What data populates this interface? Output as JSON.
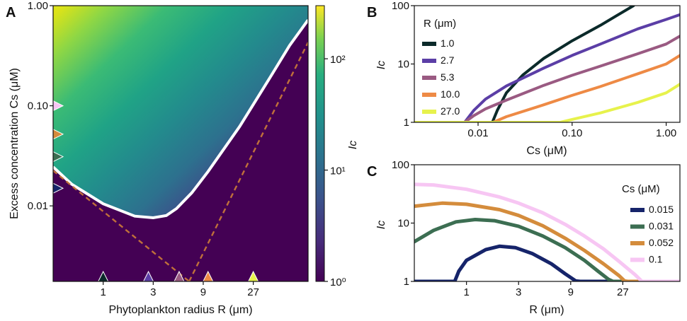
{
  "panel_labels": [
    "A",
    "B",
    "C"
  ],
  "chart_data": [
    {
      "id": "A",
      "type": "heatmap",
      "title": "",
      "xlabel": "Phytoplankton radius R (μm)",
      "ylabel": "Excess concentration Cs (μM)",
      "x_scale": "log",
      "y_scale": "log",
      "xlim": [
        0.333,
        90
      ],
      "ylim": [
        0.00176,
        1.0
      ],
      "x_ticks": [
        1,
        3,
        9,
        27
      ],
      "x_tick_labels": [
        "1",
        "3",
        "9",
        "27"
      ],
      "y_ticks": [
        0.01,
        0.1,
        1.0
      ],
      "y_tick_labels": [
        "0.01",
        "0.10",
        "1.00"
      ],
      "colorbar": {
        "label": "Ic",
        "scale": "log",
        "range": [
          1,
          300
        ],
        "ticks": [
          1,
          10,
          100
        ],
        "tick_labels": [
          "10⁰",
          "10¹",
          "10²"
        ]
      },
      "threshold_curve": {
        "color": "#ffffff",
        "points": [
          [
            0.333,
            0.0245
          ],
          [
            0.5,
            0.0165
          ],
          [
            1,
            0.0105
          ],
          [
            2,
            0.0079
          ],
          [
            3,
            0.0076
          ],
          [
            4,
            0.008
          ],
          [
            5,
            0.0094
          ],
          [
            7,
            0.0135
          ],
          [
            10,
            0.022
          ],
          [
            20,
            0.062
          ],
          [
            40,
            0.2
          ],
          [
            60,
            0.4
          ],
          [
            90,
            0.72
          ]
        ]
      },
      "dashed_lines": {
        "color": "#c0703a",
        "left": [
          [
            0.333,
            0.0225
          ],
          [
            6.6,
            0.00176
          ]
        ],
        "right": [
          [
            6.6,
            0.00176
          ],
          [
            90,
            0.43
          ]
        ]
      },
      "markers_x": [
        {
          "R": 1.0,
          "color": "#0b2a2a"
        },
        {
          "R": 2.7,
          "color": "#5b3ea6"
        },
        {
          "R": 5.3,
          "color": "#9a5a82"
        },
        {
          "R": 10.0,
          "color": "#ee8a45"
        },
        {
          "R": 27.0,
          "color": "#e7f24c"
        }
      ],
      "markers_y": [
        {
          "Cs": 0.1,
          "color": "#f7c6f3"
        },
        {
          "Cs": 0.052,
          "color": "#d48c3c"
        },
        {
          "Cs": 0.031,
          "color": "#3c6e52"
        },
        {
          "Cs": 0.015,
          "color": "#16246a"
        }
      ]
    },
    {
      "id": "B",
      "type": "line",
      "xlabel": "Cs (μM)",
      "ylabel": "Ic",
      "x_scale": "log",
      "y_scale": "log",
      "xlim": [
        0.0021,
        1.4
      ],
      "ylim": [
        1,
        100
      ],
      "x_ticks": [
        0.01,
        0.1,
        1.0
      ],
      "x_tick_labels": [
        "0.01",
        "0.10",
        "1.00"
      ],
      "y_ticks": [
        1,
        10,
        100
      ],
      "y_tick_labels": [
        "1",
        "10",
        "100"
      ],
      "legend": {
        "title": "R (μm)",
        "position": "top-left"
      },
      "series": [
        {
          "name": "1.0",
          "color": "#0b2a2a",
          "points": [
            [
              0.0021,
              1
            ],
            [
              0.0142,
              1
            ],
            [
              0.016,
              1.6
            ],
            [
              0.02,
              3.2
            ],
            [
              0.03,
              6.5
            ],
            [
              0.05,
              12.5
            ],
            [
              0.1,
              25
            ],
            [
              0.2,
              46
            ],
            [
              0.3,
              68
            ],
            [
              0.45,
              100
            ]
          ]
        },
        {
          "name": "2.7",
          "color": "#5b3ea6",
          "points": [
            [
              0.0021,
              1
            ],
            [
              0.0072,
              1
            ],
            [
              0.009,
              1.6
            ],
            [
              0.012,
              2.5
            ],
            [
              0.02,
              4.2
            ],
            [
              0.05,
              8.5
            ],
            [
              0.1,
              14
            ],
            [
              0.2,
              22
            ],
            [
              0.5,
              40
            ],
            [
              1.0,
              58
            ],
            [
              1.4,
              70
            ]
          ]
        },
        {
          "name": "5.3",
          "color": "#9a5a82",
          "points": [
            [
              0.0021,
              1
            ],
            [
              0.0072,
              1
            ],
            [
              0.009,
              1.3
            ],
            [
              0.012,
              1.7
            ],
            [
              0.02,
              2.4
            ],
            [
              0.05,
              4.3
            ],
            [
              0.1,
              6.4
            ],
            [
              0.2,
              9.2
            ],
            [
              0.5,
              15
            ],
            [
              1.0,
              22
            ],
            [
              1.4,
              30
            ]
          ]
        },
        {
          "name": "10.0",
          "color": "#ee8a45",
          "points": [
            [
              0.0021,
              1
            ],
            [
              0.0145,
              1
            ],
            [
              0.02,
              1.25
            ],
            [
              0.05,
              2.0
            ],
            [
              0.1,
              2.9
            ],
            [
              0.2,
              4.1
            ],
            [
              0.5,
              6.8
            ],
            [
              1.0,
              10
            ],
            [
              1.4,
              14
            ]
          ]
        },
        {
          "name": "27.0",
          "color": "#e7f24c",
          "points": [
            [
              0.0021,
              1
            ],
            [
              0.075,
              1
            ],
            [
              0.1,
              1.12
            ],
            [
              0.2,
              1.45
            ],
            [
              0.5,
              2.2
            ],
            [
              1.0,
              3.2
            ],
            [
              1.4,
              4.5
            ]
          ]
        }
      ]
    },
    {
      "id": "C",
      "type": "line",
      "xlabel": "R (μm)",
      "ylabel": "Ic",
      "x_scale": "log",
      "y_scale": "log",
      "xlim": [
        0.333,
        90
      ],
      "ylim": [
        1,
        100
      ],
      "x_ticks": [
        1,
        3,
        9,
        27
      ],
      "x_tick_labels": [
        "1",
        "3",
        "9",
        "27"
      ],
      "y_ticks": [
        1,
        10,
        100
      ],
      "y_tick_labels": [
        "1",
        "10",
        "100"
      ],
      "legend": {
        "title": "Cs (μM)",
        "position": "right"
      },
      "series": [
        {
          "name": "0.015",
          "color": "#16246a",
          "points": [
            [
              0.333,
              1
            ],
            [
              0.78,
              1
            ],
            [
              0.85,
              1.5
            ],
            [
              1.0,
              2.3
            ],
            [
              1.5,
              3.5
            ],
            [
              2.0,
              4.0
            ],
            [
              2.8,
              3.8
            ],
            [
              4,
              3.0
            ],
            [
              6,
              2.0
            ],
            [
              8,
              1.35
            ],
            [
              10,
              1.02
            ],
            [
              11,
              1
            ],
            [
              90,
              1
            ]
          ]
        },
        {
          "name": "0.031",
          "color": "#3c6e52",
          "points": [
            [
              0.333,
              4.8
            ],
            [
              0.5,
              7.5
            ],
            [
              0.8,
              10.5
            ],
            [
              1.2,
              11.5
            ],
            [
              1.8,
              11
            ],
            [
              3,
              8.8
            ],
            [
              5,
              6
            ],
            [
              8,
              3.8
            ],
            [
              12,
              2.3
            ],
            [
              16,
              1.5
            ],
            [
              20,
              1.08
            ],
            [
              22,
              1
            ],
            [
              90,
              1
            ]
          ]
        },
        {
          "name": "0.052",
          "color": "#d48c3c",
          "points": [
            [
              0.333,
              19.5
            ],
            [
              0.6,
              22
            ],
            [
              1.0,
              21
            ],
            [
              2,
              17
            ],
            [
              3,
              13.5
            ],
            [
              5,
              9
            ],
            [
              8,
              5.5
            ],
            [
              12,
              3.4
            ],
            [
              18,
              2.0
            ],
            [
              25,
              1.25
            ],
            [
              28,
              1.02
            ],
            [
              30,
              1
            ],
            [
              90,
              1
            ]
          ]
        },
        {
          "name": "0.1",
          "color": "#f7c6f3",
          "points": [
            [
              0.333,
              46
            ],
            [
              0.5,
              45
            ],
            [
              1.0,
              38
            ],
            [
              2,
              28
            ],
            [
              3,
              22
            ],
            [
              5,
              15
            ],
            [
              8,
              9.5
            ],
            [
              12,
              6.0
            ],
            [
              18,
              3.6
            ],
            [
              25,
              2.2
            ],
            [
              35,
              1.3
            ],
            [
              40,
              1.02
            ],
            [
              42,
              1
            ],
            [
              90,
              1
            ]
          ]
        }
      ]
    }
  ]
}
